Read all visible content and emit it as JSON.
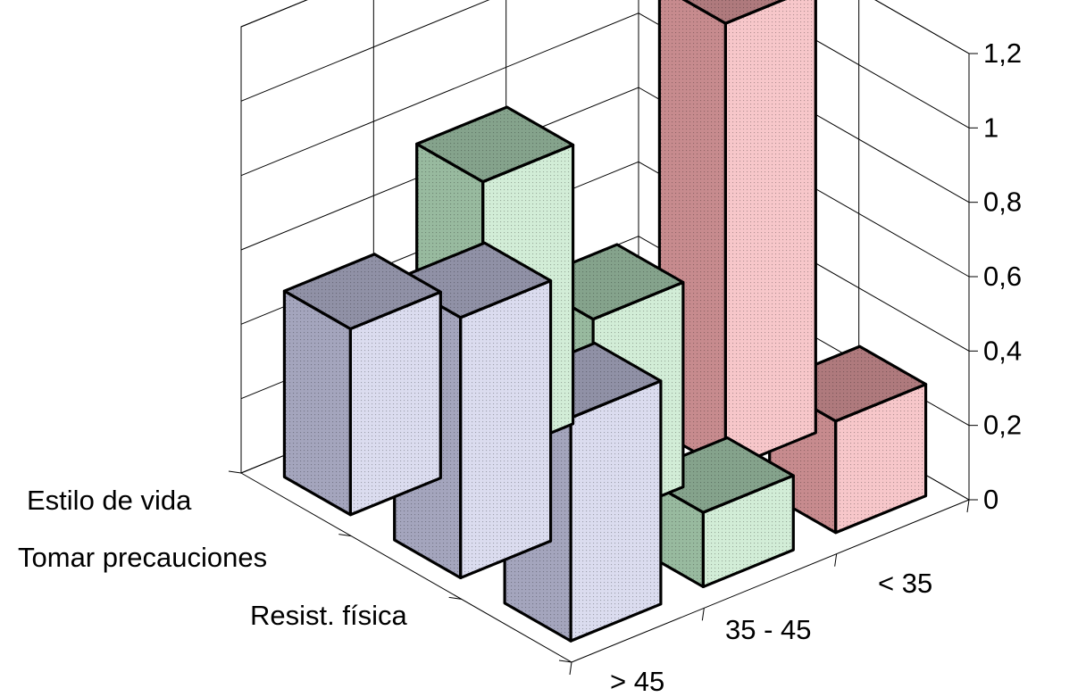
{
  "chart_data": {
    "type": "bar3d",
    "z_axis": {
      "min": 0,
      "max": 1.2,
      "ticks": [
        0,
        0.2,
        0.4,
        0.6,
        0.8,
        1,
        1.2
      ],
      "tick_labels": [
        "0",
        "0,2",
        "0,4",
        "0,6",
        "0,8",
        "1",
        "1,2"
      ]
    },
    "depth_categories": [
      "Estilo de vida",
      "Tomar precauciones",
      "Resist. física"
    ],
    "series": [
      {
        "name": "< 35",
        "color": "#f3a9ad",
        "values": [
          null,
          1.2,
          0.3
        ]
      },
      {
        "name": "35 - 45",
        "color": "#b9e3c2",
        "values": [
          0.75,
          0.55,
          0.2
        ]
      },
      {
        "name": "> 45",
        "color": "#c8c9e6",
        "values": [
          0.5,
          0.7,
          0.6
        ]
      }
    ],
    "grid": true
  }
}
